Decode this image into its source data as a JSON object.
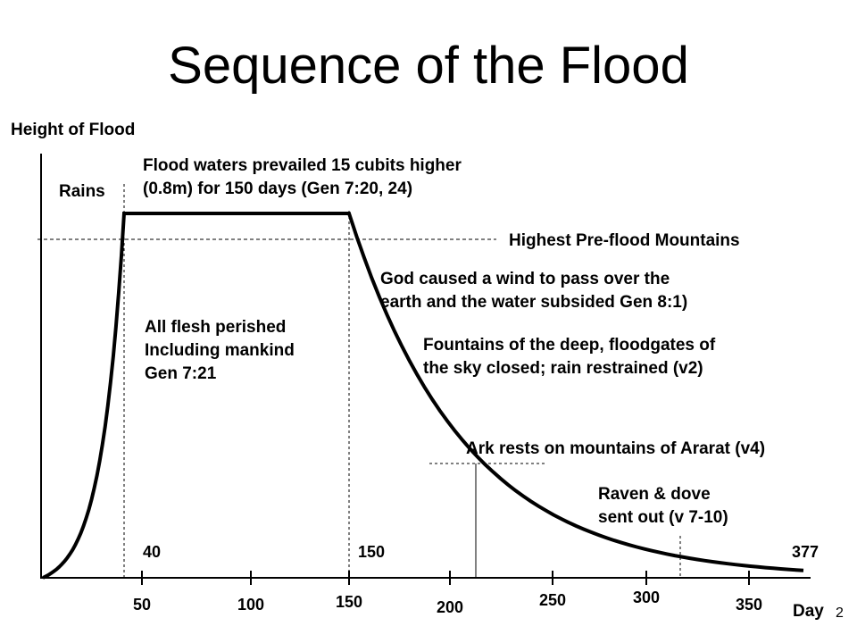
{
  "slide_number": "2",
  "chart_data": {
    "type": "line",
    "title": "Sequence of the Flood",
    "ylabel": "Height of Flood",
    "xlabel": "Day",
    "x_ticks": [
      50,
      100,
      150,
      200,
      250,
      300,
      350
    ],
    "xlim": [
      0,
      377
    ],
    "key_days": [
      40,
      150,
      377
    ],
    "reference_line": "Highest Pre-flood Mountains",
    "annotations": {
      "rains": "Rains",
      "prevailed": [
        "Flood waters prevailed 15 cubits higher",
        "(0.8m) for 150 days (Gen 7:20, 24)"
      ],
      "wind": [
        "God caused a wind to pass over the",
        "earth and the water subsided Gen 8:1)"
      ],
      "perished": [
        "All flesh perished",
        "Including mankind",
        "Gen 7:21"
      ],
      "fountains": [
        "Fountains of the deep, floodgates of",
        "the sky closed; rain restrained (v2)"
      ],
      "ark": "Ark rests on mountains of Ararat (v4)",
      "raven": [
        "Raven & dove",
        "sent out (v 7-10)"
      ]
    }
  }
}
